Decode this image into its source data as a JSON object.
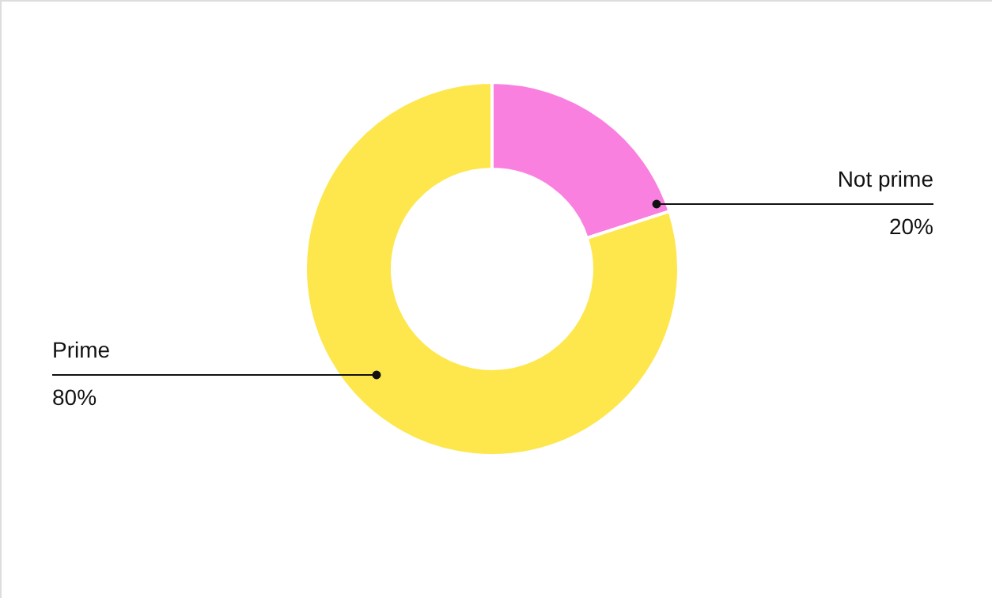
{
  "chart_data": {
    "type": "donut",
    "categories": [
      "Not prime",
      "Prime"
    ],
    "values": [
      20,
      80
    ],
    "colors": [
      "#fa80e0",
      "#fde74c"
    ],
    "value_labels": [
      "20%",
      "80%"
    ]
  }
}
